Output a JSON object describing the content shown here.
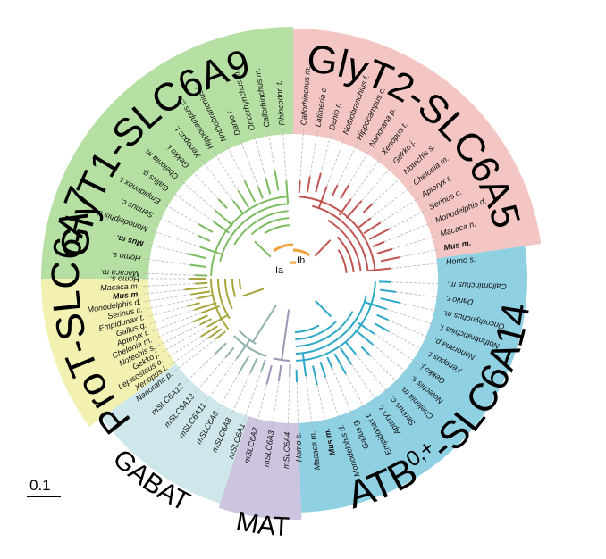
{
  "figure": {
    "colors": {
      "glyt1": "#7dbb60",
      "glyt1_bg": "#b6dfa3",
      "glyt2": "#c05552",
      "glyt2_bg": "#f3c6c4",
      "atb": "#2da8c8",
      "atb_bg": "#8fd1e3",
      "prot": "#a8a43c",
      "prot_bg": "#f2f1b2",
      "gabat": "#92b1ae",
      "gabat_bg": "#cde7eb",
      "mat": "#9c94b6",
      "mat_bg": "#cdc4e0",
      "root": "#f0a03c",
      "guide": "#b5b5b5"
    },
    "scale_bar_label": "0.1",
    "node_labels": {
      "Ia": "Ia",
      "Ib": "Ib"
    },
    "groups": [
      {
        "id": "glyt1",
        "title": "GlyT1-SLC6A9",
        "leaves": [
          "Macaca m.",
          "Homo s.",
          "Mus m.",
          "Monodelphis d.",
          "Serinus c.",
          "Empidonax t.",
          "Gallus g.",
          "Chelonia m.",
          "Gekko j.",
          "Xenopus t.",
          "Hippocampus c.",
          "Nothobranchius f.",
          "Danio r.",
          "Oncorhynchus m.",
          "Callorhinchus m.",
          "Rhincodon t."
        ]
      },
      {
        "id": "glyt2",
        "title": "GlyT2-SLC6A5",
        "leaves": [
          "Callorhinchus m.",
          "Latimeria c.",
          "Danio r.",
          "Nothobranchius f.",
          "Hippocampus c.",
          "Nanorana p.",
          "Xenopus t.",
          "Gekko j.",
          "Notechis s.",
          "Chelonia m.",
          "Apteryx r.",
          "Serinus c.",
          "Monodelphis d.",
          "Macaca n.",
          "Mus m.",
          "Homo s."
        ]
      },
      {
        "id": "atb",
        "title": "ATB",
        "title_sup": "0,+",
        "title_suffix": "-SLC6A14",
        "leaves": [
          "Callorhinchus m.",
          "Danio r.",
          "Oncorhynchus m.",
          "Nothobranchius f.",
          "Nanorana p.",
          "Xenopus t.",
          "Gekko j.",
          "Notechis s.",
          "Chelonia m.",
          "Serinus c.",
          "Apteryx r.",
          "Empidonax t.",
          "Gallus g.",
          "Monodelphis d.",
          "Mus m.",
          "Macaca m.",
          "Homo s."
        ]
      },
      {
        "id": "mat",
        "title": "MAT",
        "leaves": [
          "mSLC6A4",
          "mSLC6A3",
          "mSLC6A2"
        ]
      },
      {
        "id": "gabat",
        "title": "GABAT",
        "leaves": [
          "mSLC6A1",
          "mSLC6A8",
          "mSLC6A6",
          "mSLC6A11",
          "mSLC6A13",
          "mSLC6A12"
        ]
      },
      {
        "id": "prot",
        "title": "ProT-SLC6A7",
        "leaves": [
          "Nanorana p.",
          "Xenopus t.",
          "Lepisosteus o.",
          "Gekko j.",
          "Notechis s.",
          "Chelonia m.",
          "Apteryx r.",
          "Gallus g.",
          "Empidonax t.",
          "Serinus c.",
          "Monodelphis d.",
          "Mus m.",
          "Macaca m.",
          "Homo s."
        ]
      }
    ]
  }
}
